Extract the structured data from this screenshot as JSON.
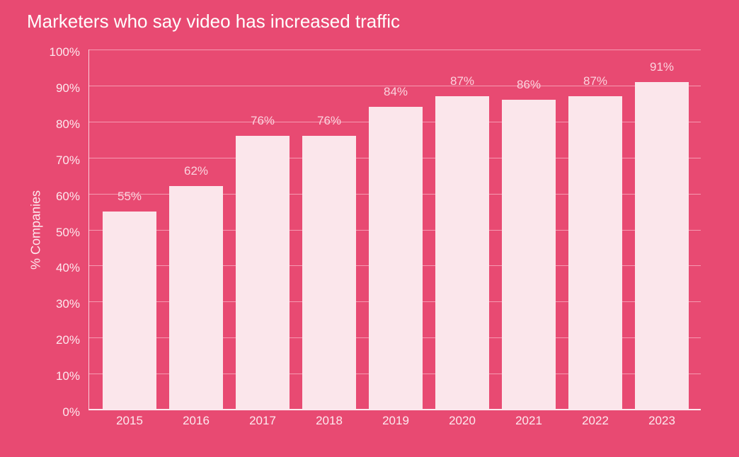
{
  "chart": {
    "title": "Marketers who say video has increased traffic",
    "ylabel": "% Companies",
    "yticks": [
      "0%",
      "10%",
      "20%",
      "30%",
      "40%",
      "50%",
      "60%",
      "70%",
      "80%",
      "90%",
      "100%"
    ],
    "bars": [
      {
        "year": "2015",
        "value": 55,
        "label": "55%"
      },
      {
        "year": "2016",
        "value": 62,
        "label": "62%"
      },
      {
        "year": "2017",
        "value": 76,
        "label": "76%"
      },
      {
        "year": "2018",
        "value": 76,
        "label": "76%"
      },
      {
        "year": "2019",
        "value": 84,
        "label": "84%"
      },
      {
        "year": "2020",
        "value": 87,
        "label": "87%"
      },
      {
        "year": "2021",
        "value": 86,
        "label": "86%"
      },
      {
        "year": "2022",
        "value": 87,
        "label": "87%"
      },
      {
        "year": "2023",
        "value": 91,
        "label": "91%"
      }
    ],
    "colors": {
      "background": "#e84a72",
      "bar": "#fbe6eb",
      "text": "#fde8ee"
    }
  },
  "chart_data": {
    "type": "bar",
    "title": "Marketers who say video has increased traffic",
    "xlabel": "",
    "ylabel": "% Companies",
    "categories": [
      "2015",
      "2016",
      "2017",
      "2018",
      "2019",
      "2020",
      "2021",
      "2022",
      "2023"
    ],
    "values": [
      55,
      62,
      76,
      76,
      84,
      87,
      86,
      87,
      91
    ],
    "data_labels": [
      "55%",
      "62%",
      "76%",
      "76%",
      "84%",
      "87%",
      "86%",
      "87%",
      "91%"
    ],
    "ylim": [
      0,
      100
    ],
    "ytick_labels": [
      "0%",
      "10%",
      "20%",
      "30%",
      "40%",
      "50%",
      "60%",
      "70%",
      "80%",
      "90%",
      "100%"
    ],
    "grid": true,
    "legend": null
  }
}
